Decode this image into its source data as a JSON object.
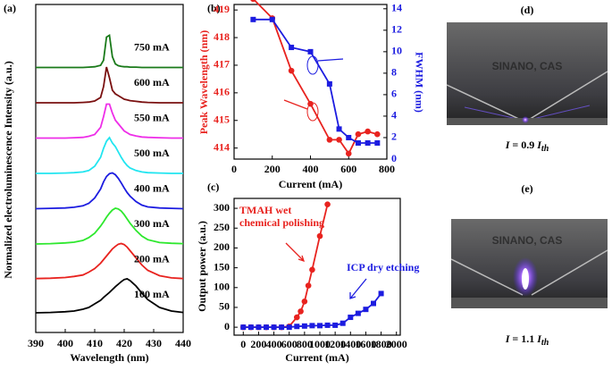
{
  "chart_data": [
    {
      "type": "line",
      "panel": "(a)",
      "xlabel": "Wavelength (nm)",
      "ylabel": "Normalized electroluminescence Intensity (a.u.)",
      "xlim": [
        390,
        440
      ],
      "xticks": [
        390,
        400,
        410,
        420,
        430,
        440
      ],
      "x": [
        390,
        395,
        400,
        403,
        406,
        408,
        410,
        412,
        413,
        414,
        415,
        416,
        417,
        418,
        419,
        420,
        421,
        422,
        424,
        426,
        428,
        432,
        436,
        440
      ],
      "series": [
        {
          "name": "100 mA",
          "color": "#000000",
          "values": [
            0.05,
            0.06,
            0.08,
            0.1,
            0.15,
            0.2,
            0.3,
            0.4,
            0.48,
            0.55,
            0.62,
            0.7,
            0.78,
            0.85,
            0.92,
            0.98,
            1.0,
            0.95,
            0.8,
            0.6,
            0.42,
            0.2,
            0.1,
            0.06
          ]
        },
        {
          "name": "200 mA",
          "color": "#e8231f",
          "values": [
            0.02,
            0.03,
            0.05,
            0.08,
            0.12,
            0.2,
            0.3,
            0.45,
            0.55,
            0.65,
            0.75,
            0.85,
            0.92,
            0.98,
            1.0,
            0.97,
            0.9,
            0.8,
            0.6,
            0.4,
            0.25,
            0.1,
            0.04,
            0.02
          ]
        },
        {
          "name": "300 mA",
          "color": "#2ee82e",
          "values": [
            0,
            0.01,
            0.03,
            0.05,
            0.1,
            0.18,
            0.3,
            0.5,
            0.62,
            0.75,
            0.86,
            0.95,
            1.0,
            0.98,
            0.92,
            0.82,
            0.7,
            0.58,
            0.38,
            0.22,
            0.12,
            0.04,
            0.02,
            0.01
          ]
        },
        {
          "name": "400 mA",
          "color": "#1c1ce0",
          "values": [
            0,
            0.01,
            0.02,
            0.04,
            0.08,
            0.15,
            0.3,
            0.55,
            0.75,
            0.9,
            0.98,
            1.0,
            0.95,
            0.85,
            0.72,
            0.58,
            0.45,
            0.35,
            0.2,
            0.1,
            0.05,
            0.02,
            0.01,
            0
          ]
        },
        {
          "name": "500 mA",
          "color": "#22e5f0",
          "values": [
            0,
            0,
            0.01,
            0.02,
            0.04,
            0.08,
            0.2,
            0.45,
            0.7,
            0.9,
            1.0,
            0.85,
            0.75,
            0.6,
            0.45,
            0.32,
            0.22,
            0.15,
            0.08,
            0.04,
            0.02,
            0.01,
            0,
            0
          ]
        },
        {
          "name": "550 mA",
          "color": "#ee2ee8",
          "values": [
            0,
            0,
            0,
            0.01,
            0.02,
            0.05,
            0.1,
            0.3,
            0.6,
            0.95,
            0.95,
            0.7,
            0.5,
            0.4,
            0.3,
            0.2,
            0.15,
            0.1,
            0.06,
            0.03,
            0.02,
            0.01,
            0,
            0
          ]
        },
        {
          "name": "600 mA",
          "color": "#7a1010",
          "values": [
            0,
            0,
            0,
            0,
            0.01,
            0.02,
            0.05,
            0.15,
            0.45,
            1.0,
            0.7,
            0.35,
            0.25,
            0.2,
            0.15,
            0.1,
            0.08,
            0.06,
            0.04,
            0.02,
            0.01,
            0,
            0,
            0
          ]
        },
        {
          "name": "750 mA",
          "color": "#1a7a1a",
          "values": [
            0,
            0,
            0,
            0,
            0,
            0.01,
            0.02,
            0.06,
            0.2,
            0.85,
            0.9,
            0.3,
            0.1,
            0.05,
            0.03,
            0.02,
            0.02,
            0.01,
            0.01,
            0,
            0,
            0,
            0,
            0
          ]
        }
      ]
    },
    {
      "type": "dual",
      "panel": "(b)",
      "xlabel": "Current (mA)",
      "ylabel": "Peak Wavelength (nm)",
      "y2label": "FWHM (nm)",
      "xlim": [
        0,
        800
      ],
      "xticks": [
        0,
        200,
        400,
        600,
        800
      ],
      "ylim": [
        413.6,
        419.2
      ],
      "yticks": [
        414,
        415,
        416,
        417,
        418,
        419
      ],
      "y2lim": [
        0,
        14.4
      ],
      "y2ticks": [
        0,
        2,
        4,
        6,
        8,
        10,
        12,
        14
      ],
      "series": [
        {
          "color": "#e8231f",
          "marker": "circle",
          "x": [
            100,
            200,
            300,
            400,
            500,
            550,
            600,
            650,
            700,
            750
          ],
          "values": [
            419.4,
            418.7,
            416.8,
            415.6,
            414.3,
            414.3,
            413.8,
            414.5,
            414.6,
            414.5
          ]
        },
        {
          "color": "#1c1ce0",
          "marker": "square",
          "axis": "y2",
          "x": [
            100,
            200,
            300,
            400,
            500,
            550,
            600,
            650,
            700,
            750
          ],
          "values": [
            13,
            13,
            10.4,
            10,
            7,
            2.8,
            2,
            1.5,
            1.5,
            1.5
          ]
        }
      ]
    },
    {
      "type": "line",
      "panel": "(c)",
      "xlabel": "Current (mA)",
      "ylabel": "Output power (a.u.)",
      "xlim": [
        -120,
        2050
      ],
      "xticks": [
        0,
        200,
        400,
        600,
        800,
        1000,
        1200,
        1400,
        1600,
        1800,
        2000
      ],
      "ylim": [
        -20,
        325
      ],
      "yticks": [
        0,
        50,
        100,
        150,
        200,
        250,
        300
      ],
      "series": [
        {
          "color": "#e8231f",
          "marker": "circle",
          "x": [
            0,
            100,
            200,
            300,
            400,
            500,
            600,
            700,
            750,
            800,
            850,
            900,
            1000,
            1100
          ],
          "values": [
            0,
            0,
            0,
            0,
            0,
            0,
            2,
            25,
            40,
            65,
            105,
            145,
            230,
            310
          ]
        },
        {
          "color": "#1c1ce0",
          "marker": "square",
          "x": [
            0,
            100,
            200,
            300,
            400,
            500,
            600,
            700,
            800,
            900,
            1000,
            1100,
            1200,
            1300,
            1400,
            1500,
            1600,
            1700,
            1800
          ],
          "values": [
            0,
            0,
            0,
            0,
            0,
            0,
            0,
            2,
            3,
            4,
            4,
            5,
            5,
            10,
            25,
            35,
            45,
            60,
            85
          ]
        }
      ],
      "annotations": [
        {
          "text": "TMAH wet",
          "color": "#e8231f"
        },
        {
          "text": "chemical polishing",
          "color": "#e8231f"
        },
        {
          "text": "ICP dry etching",
          "color": "#1c1ce0"
        }
      ]
    }
  ],
  "photos": [
    {
      "label": "(d)",
      "watermark": "SINANO, CAS",
      "caption": [
        "I",
        " = 0.9 ",
        "I",
        "th"
      ]
    },
    {
      "label": "(e)",
      "watermark": "SINANO, CAS",
      "caption": [
        "I",
        " = 1.1 ",
        "I",
        "th"
      ]
    }
  ]
}
